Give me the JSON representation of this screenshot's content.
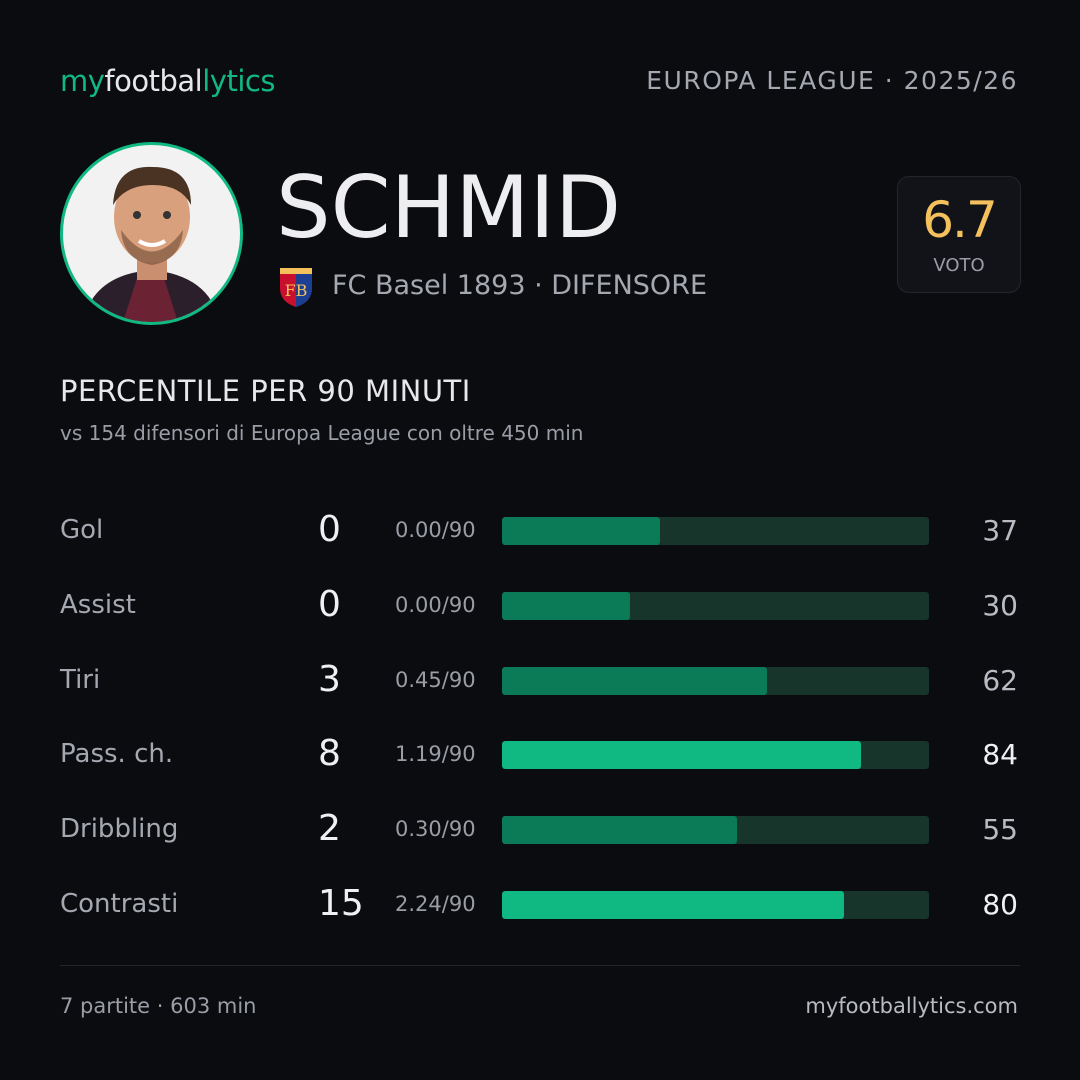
{
  "header": {
    "logo": [
      "my",
      "footbal",
      "lytics"
    ],
    "competition": "EUROPA LEAGUE · 2025/26"
  },
  "player": {
    "name": "SCHMID",
    "club_role": "FC Basel 1893 · DIFENSORE",
    "rating": 6.7,
    "rating_label": "VOTO"
  },
  "section": {
    "title": "PERCENTILE  PER 90 MINUTI",
    "subtitle": "vs 154 difensori  di Europa League con oltre 450 min"
  },
  "rows": [
    {
      "label": "Gol",
      "total": 0,
      "per90": "0.00/90",
      "percentile": 37,
      "color": "#0b7a57"
    },
    {
      "label": "Assist",
      "total": 0,
      "per90": "0.00/90",
      "percentile": 30,
      "color": "#0b7a57"
    },
    {
      "label": "Tiri",
      "total": 3,
      "per90": "0.45/90",
      "percentile": 62,
      "color": "#0b7a57"
    },
    {
      "label": "Pass. ch.",
      "total": 8,
      "per90": "1.19/90",
      "percentile": 84,
      "color": "#10b981"
    },
    {
      "label": "Dribbling",
      "total": 2,
      "per90": "0.30/90",
      "percentile": 55,
      "color": "#0b7a57"
    },
    {
      "label": "Contrasti",
      "total": 15,
      "per90": "2.24/90",
      "percentile": 80,
      "color": "#10b981"
    }
  ],
  "footer": {
    "summary": "7 partite · 603 min",
    "site": "myfootballytics.com"
  }
}
